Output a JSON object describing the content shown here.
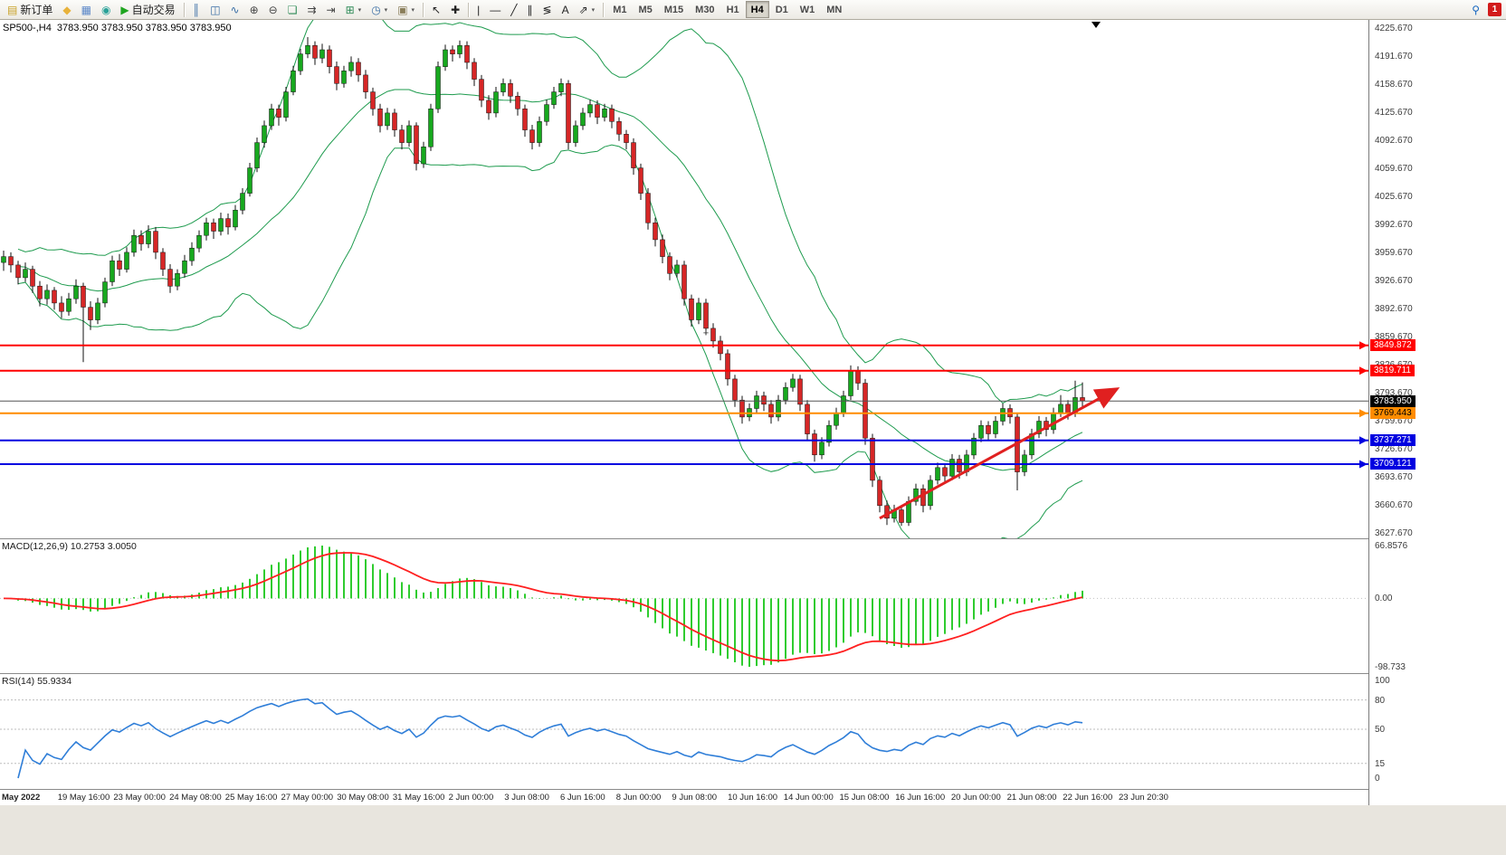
{
  "header": {
    "title": "SP500-,H4  3783.950 3783.950 3783.950 3783.950"
  },
  "toolbar": {
    "items": [
      {
        "type": "btn",
        "name": "new-order-button",
        "glyph": "▤",
        "color": "#C9A227",
        "label": "新订单"
      },
      {
        "type": "btn",
        "name": "mql-wizard-button",
        "glyph": "◆",
        "color": "#E8B23A"
      },
      {
        "type": "btn",
        "name": "market-watch-button",
        "glyph": "▦",
        "color": "#5B87C8"
      },
      {
        "type": "btn",
        "name": "navigator-button",
        "glyph": "◉",
        "color": "#2AA198"
      },
      {
        "type": "btn",
        "name": "autotrade-button",
        "glyph": "▶",
        "color": "#1FA51F",
        "label": "自动交易"
      },
      {
        "type": "sep"
      },
      {
        "type": "btn",
        "name": "bar-chart-mode-button",
        "glyph": "║",
        "color": "#3A6EA5"
      },
      {
        "type": "btn",
        "name": "candle-chart-mode-button",
        "glyph": "◫",
        "color": "#3A6EA5"
      },
      {
        "type": "btn",
        "name": "line-chart-mode-button",
        "glyph": "∿",
        "color": "#3A6EA5"
      },
      {
        "type": "btn",
        "name": "zoom-in-button",
        "glyph": "⊕",
        "color": "#444444"
      },
      {
        "type": "btn",
        "name": "zoom-out-button",
        "glyph": "⊖",
        "color": "#444444"
      },
      {
        "type": "btn",
        "name": "tile-windows-button",
        "glyph": "❏",
        "color": "#2E8B57"
      },
      {
        "type": "btn",
        "name": "auto-scroll-button",
        "glyph": "⇉",
        "color": "#444444"
      },
      {
        "type": "btn",
        "name": "chart-shift-button",
        "glyph": "⇥",
        "color": "#444444"
      },
      {
        "type": "btn",
        "name": "new-chart-button",
        "glyph": "⊞",
        "color": "#2E8B57",
        "caret": true
      },
      {
        "type": "btn",
        "name": "profiles-button",
        "glyph": "◷",
        "color": "#3A6EA5",
        "caret": true
      },
      {
        "type": "btn",
        "name": "templates-button",
        "glyph": "▣",
        "color": "#8A7E5A",
        "caret": true
      },
      {
        "type": "sep"
      },
      {
        "type": "btn",
        "name": "cursor-tool-button",
        "glyph": "↖",
        "color": "#222222"
      },
      {
        "type": "btn",
        "name": "crosshair-tool-button",
        "glyph": "✚",
        "color": "#222222"
      },
      {
        "type": "sep"
      },
      {
        "type": "btn",
        "name": "vertical-line-tool-button",
        "glyph": "|",
        "color": "#222222"
      },
      {
        "type": "btn",
        "name": "horizontal-line-tool-button",
        "glyph": "―",
        "color": "#222222"
      },
      {
        "type": "btn",
        "name": "trendline-tool-button",
        "glyph": "╱",
        "color": "#222222"
      },
      {
        "type": "btn",
        "name": "channel-tool-button",
        "glyph": "∥",
        "color": "#222222"
      },
      {
        "type": "btn",
        "name": "fibonacci-tool-button",
        "glyph": "≶",
        "color": "#222222"
      },
      {
        "type": "btn",
        "name": "text-tool-button",
        "glyph": "A",
        "color": "#222222"
      },
      {
        "type": "btn",
        "name": "arrows-tool-button",
        "glyph": "⇗",
        "color": "#222222",
        "caret": true
      },
      {
        "type": "sep"
      },
      {
        "type": "tf",
        "name": "timeframe-m1-button",
        "label": "M1"
      },
      {
        "type": "tf",
        "name": "timeframe-m5-button",
        "label": "M5"
      },
      {
        "type": "tf",
        "name": "timeframe-m15-button",
        "label": "M15"
      },
      {
        "type": "tf",
        "name": "timeframe-m30-button",
        "label": "M30"
      },
      {
        "type": "tf",
        "name": "timeframe-h1-button",
        "label": "H1"
      },
      {
        "type": "tf",
        "name": "timeframe-h4-button",
        "label": "H4",
        "active": true
      },
      {
        "type": "tf",
        "name": "timeframe-d1-button",
        "label": "D1"
      },
      {
        "type": "tf",
        "name": "timeframe-w1-button",
        "label": "W1"
      },
      {
        "type": "tf",
        "name": "timeframe-mn-button",
        "label": "MN"
      }
    ],
    "right": [
      {
        "type": "btn",
        "name": "search-button",
        "glyph": "⚲",
        "color": "#1767C0"
      },
      {
        "type": "badge",
        "name": "notification-badge",
        "label": "1"
      }
    ]
  },
  "colors": {
    "bull": "#17A81E",
    "bear": "#D62626",
    "wick": "#111111",
    "bands": "#1E9B4E",
    "macd_hist": "#2FCC2F",
    "macd_signal": "#FF2020",
    "rsi_line": "#2F7ED8",
    "trend_arrow": "#E02020"
  },
  "price_axis": {
    "labels": [
      "4225.670",
      "4191.670",
      "4158.670",
      "4125.670",
      "4092.670",
      "4059.670",
      "4025.670",
      "3992.670",
      "3959.670",
      "3926.670",
      "3892.670",
      "3859.670",
      "3826.670",
      "3793.670",
      "3759.670",
      "3726.670",
      "3693.670",
      "3660.670",
      "3627.670"
    ]
  },
  "price_lines": [
    {
      "label": "3849.872",
      "price": 3849.872,
      "color": "#FF0000",
      "text": "#FFFFFF"
    },
    {
      "label": "3819.711",
      "price": 3819.711,
      "color": "#FF0000",
      "text": "#FFFFFF"
    },
    {
      "label": "3769.443",
      "price": 3769.443,
      "color": "#FF8C00",
      "text": "#000000"
    },
    {
      "label": "3737.271",
      "price": 3737.271,
      "color": "#0000E0",
      "text": "#FFFFFF"
    },
    {
      "label": "3709.121",
      "price": 3709.121,
      "color": "#0000E0",
      "text": "#FFFFFF"
    }
  ],
  "current_price": {
    "label": "3783.950",
    "price": 3783.95,
    "color": "#000000",
    "text": "#FFFFFF"
  },
  "macd": {
    "label": "MACD(12,26,9) 10.2753 3.0050",
    "fast": 12,
    "slow": 26,
    "signal": 9,
    "axis_labels": [
      "66.8576",
      "0.00",
      "-98.733"
    ]
  },
  "rsi": {
    "label": "RSI(14) 55.9334",
    "period": 14,
    "levels": [
      80,
      50,
      15
    ],
    "axis": [
      {
        "label": "100",
        "value": 100
      },
      {
        "label": "80",
        "value": 80
      },
      {
        "label": "50",
        "value": 50
      },
      {
        "label": "15",
        "value": 15
      },
      {
        "label": "0",
        "value": 0
      }
    ]
  },
  "time_axis": {
    "labels": [
      "May 2022",
      "19 May 16:00",
      "23 May 00:00",
      "24 May 08:00",
      "25 May 16:00",
      "27 May 00:00",
      "30 May 08:00",
      "31 May 16:00",
      "2 Jun 00:00",
      "3 Jun 08:00",
      "6 Jun 16:00",
      "8 Jun 00:00",
      "9 Jun 08:00",
      "10 Jun 16:00",
      "14 Jun 00:00",
      "15 Jun 08:00",
      "16 Jun 16:00",
      "20 Jun 00:00",
      "21 Jun 08:00",
      "22 Jun 16:00",
      "23 Jun 20:30"
    ]
  },
  "chart_data": {
    "type": "candlestick",
    "symbol": "SP500-",
    "timeframe": "H4",
    "price_range": {
      "top": 4225.67,
      "bottom": 3627.67
    },
    "bollinger": {
      "period": 20,
      "deviation": 2
    },
    "plus_marker": {
      "candle": 97,
      "price": 3864,
      "glyph": "+"
    },
    "trend_arrow": {
      "from": {
        "candle": 121,
        "price": 3645
      },
      "to": {
        "candle": 153.5,
        "price": 3797
      }
    },
    "ohlc": [
      [
        3948,
        3962,
        3938,
        3955
      ],
      [
        3955,
        3960,
        3936,
        3945
      ],
      [
        3945,
        3950,
        3922,
        3930
      ],
      [
        3930,
        3948,
        3925,
        3940
      ],
      [
        3940,
        3944,
        3912,
        3920
      ],
      [
        3920,
        3926,
        3896,
        3905
      ],
      [
        3905,
        3922,
        3898,
        3915
      ],
      [
        3915,
        3919,
        3892,
        3900
      ],
      [
        3900,
        3908,
        3882,
        3890
      ],
      [
        3890,
        3912,
        3885,
        3905
      ],
      [
        3905,
        3928,
        3899,
        3920
      ],
      [
        3920,
        3924,
        3830,
        3895
      ],
      [
        3895,
        3902,
        3868,
        3880
      ],
      [
        3880,
        3906,
        3875,
        3900
      ],
      [
        3900,
        3930,
        3895,
        3925
      ],
      [
        3925,
        3956,
        3920,
        3950
      ],
      [
        3950,
        3958,
        3932,
        3940
      ],
      [
        3940,
        3966,
        3936,
        3960
      ],
      [
        3960,
        3987,
        3955,
        3980
      ],
      [
        3980,
        3986,
        3962,
        3970
      ],
      [
        3970,
        3992,
        3965,
        3985
      ],
      [
        3985,
        3990,
        3952,
        3960
      ],
      [
        3960,
        3965,
        3932,
        3940
      ],
      [
        3940,
        3946,
        3912,
        3920
      ],
      [
        3920,
        3940,
        3915,
        3935
      ],
      [
        3935,
        3957,
        3930,
        3950
      ],
      [
        3950,
        3972,
        3944,
        3965
      ],
      [
        3965,
        3986,
        3960,
        3980
      ],
      [
        3980,
        4001,
        3974,
        3995
      ],
      [
        3995,
        4000,
        3976,
        3985
      ],
      [
        3985,
        4007,
        3980,
        4000
      ],
      [
        4000,
        4006,
        3981,
        3990
      ],
      [
        3990,
        4016,
        3986,
        4010
      ],
      [
        4010,
        4036,
        4005,
        4030
      ],
      [
        4030,
        4066,
        4026,
        4060
      ],
      [
        4060,
        4096,
        4055,
        4090
      ],
      [
        4090,
        4116,
        4084,
        4110
      ],
      [
        4110,
        4136,
        4105,
        4130
      ],
      [
        4130,
        4135,
        4110,
        4120
      ],
      [
        4120,
        4156,
        4115,
        4150
      ],
      [
        4150,
        4181,
        4146,
        4175
      ],
      [
        4175,
        4201,
        4170,
        4195
      ],
      [
        4195,
        4215,
        4190,
        4205
      ],
      [
        4205,
        4210,
        4182,
        4190
      ],
      [
        4190,
        4207,
        4184,
        4200
      ],
      [
        4200,
        4205,
        4172,
        4180
      ],
      [
        4180,
        4186,
        4152,
        4160
      ],
      [
        4160,
        4181,
        4155,
        4175
      ],
      [
        4175,
        4192,
        4168,
        4185
      ],
      [
        4185,
        4190,
        4162,
        4170
      ],
      [
        4170,
        4176,
        4142,
        4150
      ],
      [
        4150,
        4155,
        4122,
        4130
      ],
      [
        4130,
        4136,
        4102,
        4110
      ],
      [
        4110,
        4131,
        4105,
        4125
      ],
      [
        4125,
        4130,
        4097,
        4105
      ],
      [
        4105,
        4111,
        4082,
        4090
      ],
      [
        4090,
        4116,
        4085,
        4110
      ],
      [
        4110,
        4114,
        4057,
        4065
      ],
      [
        4065,
        4091,
        4060,
        4085
      ],
      [
        4085,
        4136,
        4080,
        4130
      ],
      [
        4130,
        4186,
        4125,
        4180
      ],
      [
        4180,
        4206,
        4175,
        4200
      ],
      [
        4200,
        4205,
        4186,
        4195
      ],
      [
        4195,
        4211,
        4190,
        4205
      ],
      [
        4205,
        4210,
        4177,
        4185
      ],
      [
        4185,
        4190,
        4157,
        4165
      ],
      [
        4165,
        4170,
        4132,
        4140
      ],
      [
        4140,
        4146,
        4117,
        4125
      ],
      [
        4125,
        4156,
        4120,
        4150
      ],
      [
        4150,
        4166,
        4145,
        4160
      ],
      [
        4160,
        4165,
        4137,
        4145
      ],
      [
        4145,
        4150,
        4122,
        4130
      ],
      [
        4130,
        4135,
        4097,
        4105
      ],
      [
        4105,
        4111,
        4082,
        4090
      ],
      [
        4090,
        4121,
        4085,
        4115
      ],
      [
        4115,
        4141,
        4110,
        4135
      ],
      [
        4135,
        4156,
        4130,
        4150
      ],
      [
        4150,
        4166,
        4145,
        4160
      ],
      [
        4160,
        4164,
        4082,
        4090
      ],
      [
        4090,
        4116,
        4085,
        4110
      ],
      [
        4110,
        4131,
        4105,
        4125
      ],
      [
        4125,
        4141,
        4120,
        4135
      ],
      [
        4135,
        4140,
        4112,
        4120
      ],
      [
        4120,
        4136,
        4115,
        4130
      ],
      [
        4130,
        4135,
        4107,
        4115
      ],
      [
        4115,
        4120,
        4092,
        4100
      ],
      [
        4100,
        4105,
        4082,
        4090
      ],
      [
        4090,
        4095,
        4052,
        4060
      ],
      [
        4060,
        4065,
        4022,
        4030
      ],
      [
        4030,
        4036,
        3987,
        3995
      ],
      [
        3995,
        4001,
        3967,
        3975
      ],
      [
        3975,
        3981,
        3947,
        3955
      ],
      [
        3955,
        3960,
        3927,
        3935
      ],
      [
        3935,
        3951,
        3930,
        3945
      ],
      [
        3945,
        3950,
        3897,
        3905
      ],
      [
        3905,
        3910,
        3872,
        3880
      ],
      [
        3880,
        3906,
        3875,
        3900
      ],
      [
        3900,
        3905,
        3862,
        3870
      ],
      [
        3870,
        3876,
        3847,
        3855
      ],
      [
        3855,
        3861,
        3832,
        3840
      ],
      [
        3840,
        3845,
        3802,
        3810
      ],
      [
        3810,
        3815,
        3777,
        3785
      ],
      [
        3785,
        3790,
        3757,
        3765
      ],
      [
        3765,
        3781,
        3760,
        3775
      ],
      [
        3775,
        3796,
        3770,
        3790
      ],
      [
        3790,
        3795,
        3772,
        3780
      ],
      [
        3780,
        3785,
        3757,
        3765
      ],
      [
        3765,
        3791,
        3760,
        3785
      ],
      [
        3785,
        3806,
        3780,
        3800
      ],
      [
        3800,
        3816,
        3795,
        3810
      ],
      [
        3810,
        3815,
        3772,
        3780
      ],
      [
        3780,
        3785,
        3737,
        3745
      ],
      [
        3745,
        3750,
        3712,
        3720
      ],
      [
        3720,
        3741,
        3715,
        3735
      ],
      [
        3735,
        3761,
        3730,
        3755
      ],
      [
        3755,
        3776,
        3750,
        3770
      ],
      [
        3770,
        3796,
        3765,
        3790
      ],
      [
        3790,
        3826,
        3785,
        3820
      ],
      [
        3820,
        3825,
        3797,
        3805
      ],
      [
        3805,
        3810,
        3732,
        3740
      ],
      [
        3740,
        3745,
        3682,
        3690
      ],
      [
        3690,
        3695,
        3652,
        3660
      ],
      [
        3660,
        3666,
        3637,
        3645
      ],
      [
        3645,
        3661,
        3640,
        3655
      ],
      [
        3655,
        3660,
        3636,
        3640
      ],
      [
        3640,
        3671,
        3636,
        3665
      ],
      [
        3665,
        3686,
        3660,
        3680
      ],
      [
        3680,
        3685,
        3652,
        3660
      ],
      [
        3660,
        3696,
        3655,
        3690
      ],
      [
        3690,
        3711,
        3685,
        3705
      ],
      [
        3705,
        3710,
        3687,
        3695
      ],
      [
        3695,
        3721,
        3690,
        3715
      ],
      [
        3715,
        3720,
        3692,
        3700
      ],
      [
        3700,
        3726,
        3695,
        3720
      ],
      [
        3720,
        3746,
        3715,
        3740
      ],
      [
        3740,
        3761,
        3735,
        3755
      ],
      [
        3755,
        3760,
        3737,
        3745
      ],
      [
        3745,
        3766,
        3740,
        3760
      ],
      [
        3760,
        3781,
        3755,
        3775
      ],
      [
        3775,
        3780,
        3757,
        3765
      ],
      [
        3765,
        3770,
        3678,
        3700
      ],
      [
        3700,
        3726,
        3695,
        3720
      ],
      [
        3720,
        3751,
        3715,
        3745
      ],
      [
        3745,
        3766,
        3740,
        3760
      ],
      [
        3760,
        3765,
        3742,
        3750
      ],
      [
        3750,
        3776,
        3745,
        3770
      ],
      [
        3770,
        3791,
        3765,
        3780
      ],
      [
        3780,
        3785,
        3762,
        3770
      ],
      [
        3770,
        3808,
        3765,
        3788
      ],
      [
        3788,
        3806,
        3776,
        3783.95
      ]
    ]
  }
}
